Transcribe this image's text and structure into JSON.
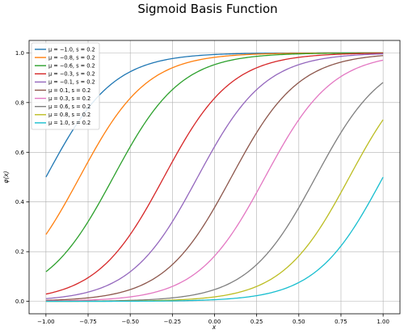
{
  "chart_data": {
    "type": "line",
    "title": "Sigmoid Basis Function",
    "xlabel": "x",
    "ylabel": "φ(x)",
    "xlim": [
      -1.1,
      1.1
    ],
    "ylim": [
      -0.05,
      1.05
    ],
    "x_ticks": [
      "−1.00",
      "−0.75",
      "−0.50",
      "−0.25",
      "0.00",
      "0.25",
      "0.50",
      "0.75",
      "1.00"
    ],
    "y_ticks": [
      "0.0",
      "0.2",
      "0.4",
      "0.6",
      "0.8",
      "1.0"
    ],
    "grid": true,
    "legend_position": "upper-left",
    "x_sample": [
      -1.0,
      -0.9,
      -0.8,
      -0.7,
      -0.6,
      -0.5,
      -0.4,
      -0.3,
      -0.2,
      -0.1,
      0.0,
      0.1,
      0.2,
      0.3,
      0.4,
      0.5,
      0.6,
      0.7,
      0.8,
      0.9,
      1.0
    ],
    "series": [
      {
        "name": "μ = −1.0, s = 0.2",
        "mu": -1.0,
        "s": 0.2,
        "color": "#1f77b4",
        "values": [
          0.5,
          0.622,
          0.731,
          0.818,
          0.881,
          0.924,
          0.953,
          0.971,
          0.982,
          0.989,
          0.993,
          0.996,
          0.998,
          0.998,
          0.999,
          0.999,
          1.0,
          1.0,
          1.0,
          1.0,
          1.0
        ]
      },
      {
        "name": "μ = −0.8, s = 0.2",
        "mu": -0.8,
        "s": 0.2,
        "color": "#ff7f0e",
        "values": [
          0.269,
          0.378,
          0.5,
          0.622,
          0.731,
          0.818,
          0.881,
          0.924,
          0.953,
          0.971,
          0.982,
          0.989,
          0.993,
          0.996,
          0.998,
          0.998,
          0.999,
          0.999,
          1.0,
          1.0,
          1.0
        ]
      },
      {
        "name": "μ = −0.6, s = 0.2",
        "mu": -0.6,
        "s": 0.2,
        "color": "#2ca02c",
        "values": [
          0.119,
          0.182,
          0.269,
          0.378,
          0.5,
          0.622,
          0.731,
          0.818,
          0.881,
          0.924,
          0.953,
          0.971,
          0.982,
          0.989,
          0.993,
          0.996,
          0.998,
          0.998,
          0.999,
          0.999,
          1.0
        ]
      },
      {
        "name": "μ = −0.3, s = 0.2",
        "mu": -0.3,
        "s": 0.2,
        "color": "#d62728",
        "values": [
          0.029,
          0.047,
          0.076,
          0.119,
          0.182,
          0.269,
          0.378,
          0.5,
          0.622,
          0.731,
          0.818,
          0.881,
          0.924,
          0.953,
          0.971,
          0.982,
          0.989,
          0.993,
          0.996,
          0.998,
          0.998
        ]
      },
      {
        "name": "μ = −0.1, s = 0.2",
        "mu": -0.1,
        "s": 0.2,
        "color": "#9467bd",
        "values": [
          0.011,
          0.018,
          0.029,
          0.047,
          0.076,
          0.119,
          0.182,
          0.269,
          0.378,
          0.5,
          0.622,
          0.731,
          0.818,
          0.881,
          0.924,
          0.953,
          0.971,
          0.982,
          0.989,
          0.993,
          0.996
        ]
      },
      {
        "name": "μ = 0.1, s = 0.2",
        "mu": 0.1,
        "s": 0.2,
        "color": "#8c564b",
        "values": [
          0.004,
          0.007,
          0.011,
          0.018,
          0.029,
          0.047,
          0.076,
          0.119,
          0.182,
          0.269,
          0.378,
          0.5,
          0.622,
          0.731,
          0.818,
          0.881,
          0.924,
          0.953,
          0.971,
          0.982,
          0.989
        ]
      },
      {
        "name": "μ = 0.3, s = 0.2",
        "mu": 0.3,
        "s": 0.2,
        "color": "#e377c2",
        "values": [
          0.002,
          0.002,
          0.004,
          0.007,
          0.011,
          0.018,
          0.029,
          0.047,
          0.076,
          0.119,
          0.182,
          0.269,
          0.378,
          0.5,
          0.622,
          0.731,
          0.818,
          0.881,
          0.924,
          0.953,
          0.971
        ]
      },
      {
        "name": "μ = 0.6, s = 0.2",
        "mu": 0.6,
        "s": 0.2,
        "color": "#7f7f7f",
        "values": [
          0.0,
          0.001,
          0.001,
          0.001,
          0.002,
          0.004,
          0.007,
          0.011,
          0.018,
          0.029,
          0.047,
          0.076,
          0.119,
          0.182,
          0.269,
          0.378,
          0.5,
          0.622,
          0.731,
          0.818,
          0.881
        ]
      },
      {
        "name": "μ = 0.8, s = 0.2",
        "mu": 0.8,
        "s": 0.2,
        "color": "#bcbd22",
        "values": [
          0.0,
          0.0,
          0.0,
          0.0,
          0.001,
          0.001,
          0.002,
          0.004,
          0.007,
          0.011,
          0.018,
          0.029,
          0.047,
          0.076,
          0.119,
          0.182,
          0.269,
          0.378,
          0.5,
          0.622,
          0.731
        ]
      },
      {
        "name": "μ = 1.0, s = 0.2",
        "mu": 1.0,
        "s": 0.2,
        "color": "#17becf",
        "values": [
          0.0,
          0.0,
          0.0,
          0.0,
          0.0,
          0.0,
          0.001,
          0.001,
          0.002,
          0.004,
          0.007,
          0.011,
          0.018,
          0.029,
          0.047,
          0.076,
          0.119,
          0.182,
          0.269,
          0.378,
          0.5
        ]
      }
    ]
  }
}
